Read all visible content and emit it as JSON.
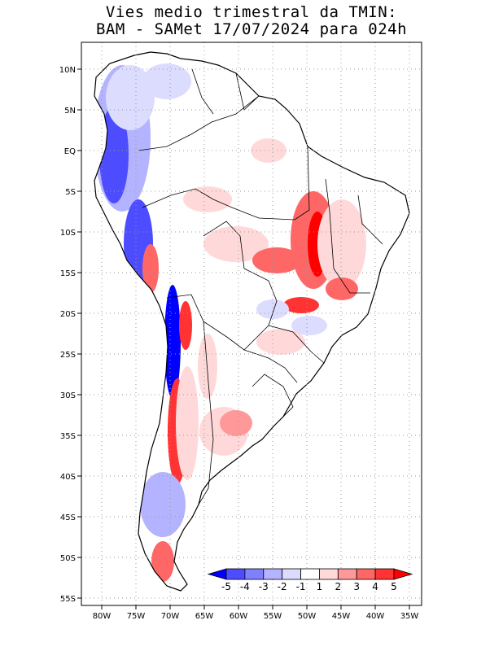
{
  "title": {
    "line1": "Vies medio trimestral da TMIN:",
    "line2": "BAM - SAMet 17/07/2024  para 024h"
  },
  "map": {
    "lon_labels": [
      "80W",
      "75W",
      "70W",
      "65W",
      "60W",
      "55W",
      "50W",
      "45W",
      "40W",
      "35W"
    ],
    "lat_labels": [
      "10N",
      "5N",
      "EQ",
      "5S",
      "10S",
      "15S",
      "20S",
      "25S",
      "30S",
      "35S",
      "40S",
      "45S",
      "50S",
      "55S"
    ],
    "gridlines": "dotted"
  },
  "colorbar": {
    "labels": [
      "-5",
      "-4",
      "-3",
      "-2",
      "-1",
      "1",
      "2",
      "3",
      "4",
      "5"
    ],
    "colors": [
      "#0000ff",
      "#4d4dff",
      "#8080ff",
      "#b3b3ff",
      "#dcdcff",
      "#ffffff",
      "#ffd9d9",
      "#ff9999",
      "#ff6666",
      "#ff3333",
      "#ff0000"
    ]
  },
  "colors": {
    "land_outline": "#000000",
    "cold_bias": "#4d4dff",
    "warm_bias": "#ff3333"
  }
}
